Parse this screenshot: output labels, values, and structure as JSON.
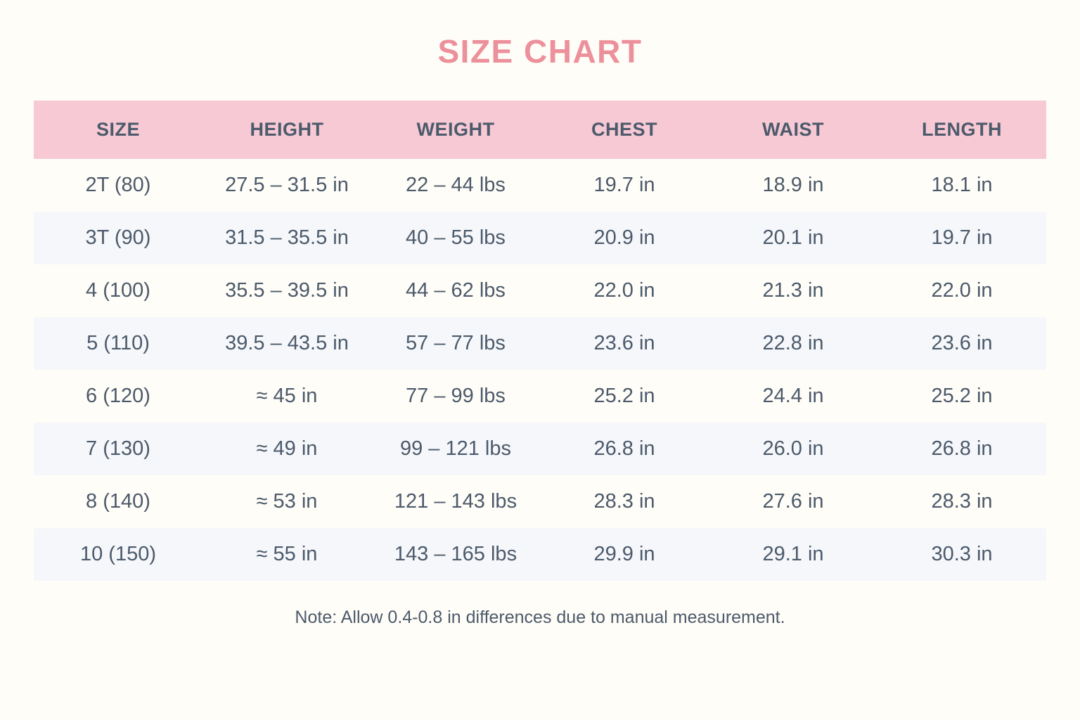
{
  "page": {
    "title": "SIZE CHART",
    "note": "Note: Allow 0.4-0.8 in differences due to manual measurement."
  },
  "colors": {
    "page_background": "#FFFDF7",
    "header_background": "#F7C9D4",
    "alt_row_background": "#F5F7FA",
    "title_text": "#EC909B",
    "body_text": "#4C5A6B"
  },
  "table": {
    "headers": [
      "SIZE",
      "HEIGHT",
      "WEIGHT",
      "CHEST",
      "WAIST",
      "LENGTH"
    ],
    "rows": [
      [
        "2T (80)",
        "27.5 – 31.5 in",
        "22 – 44 lbs",
        "19.7 in",
        "18.9 in",
        "18.1 in"
      ],
      [
        "3T (90)",
        "31.5 – 35.5 in",
        "40 – 55 lbs",
        "20.9 in",
        "20.1 in",
        "19.7 in"
      ],
      [
        "4 (100)",
        "35.5 – 39.5 in",
        "44 – 62 lbs",
        "22.0 in",
        "21.3 in",
        "22.0 in"
      ],
      [
        "5 (110)",
        "39.5 – 43.5 in",
        "57 – 77 lbs",
        "23.6 in",
        "22.8 in",
        "23.6 in"
      ],
      [
        "6 (120)",
        "≈ 45 in",
        "77 – 99 lbs",
        "25.2 in",
        "24.4 in",
        "25.2 in"
      ],
      [
        "7 (130)",
        "≈ 49 in",
        "99 – 121 lbs",
        "26.8 in",
        "26.0 in",
        "26.8 in"
      ],
      [
        "8 (140)",
        "≈ 53 in",
        "121 – 143 lbs",
        "28.3 in",
        "27.6 in",
        "28.3 in"
      ],
      [
        "10 (150)",
        "≈ 55 in",
        "143 – 165 lbs",
        "29.9 in",
        "29.1 in",
        "30.3 in"
      ]
    ]
  },
  "chart_data": {
    "type": "table",
    "title": "SIZE CHART",
    "columns": [
      "SIZE",
      "HEIGHT",
      "WEIGHT",
      "CHEST",
      "WAIST",
      "LENGTH"
    ],
    "rows": [
      [
        "2T (80)",
        "27.5 – 31.5 in",
        "22 – 44 lbs",
        "19.7 in",
        "18.9 in",
        "18.1 in"
      ],
      [
        "3T (90)",
        "31.5 – 35.5 in",
        "40 – 55 lbs",
        "20.9 in",
        "20.1 in",
        "19.7 in"
      ],
      [
        "4 (100)",
        "35.5 – 39.5 in",
        "44 – 62 lbs",
        "22.0 in",
        "21.3 in",
        "22.0 in"
      ],
      [
        "5 (110)",
        "39.5 – 43.5 in",
        "57 – 77 lbs",
        "23.6 in",
        "22.8 in",
        "23.6 in"
      ],
      [
        "6 (120)",
        "≈ 45 in",
        "77 – 99 lbs",
        "25.2 in",
        "24.4 in",
        "25.2 in"
      ],
      [
        "7 (130)",
        "≈ 49 in",
        "99 – 121 lbs",
        "26.8 in",
        "26.0 in",
        "26.8 in"
      ],
      [
        "8 (140)",
        "≈ 53 in",
        "121 – 143 lbs",
        "28.3 in",
        "27.6 in",
        "28.3 in"
      ],
      [
        "10 (150)",
        "≈ 55 in",
        "143 – 165 lbs",
        "29.9 in",
        "29.1 in",
        "30.3 in"
      ]
    ],
    "note": "Note: Allow 0.4-0.8 in differences due to manual measurement."
  }
}
